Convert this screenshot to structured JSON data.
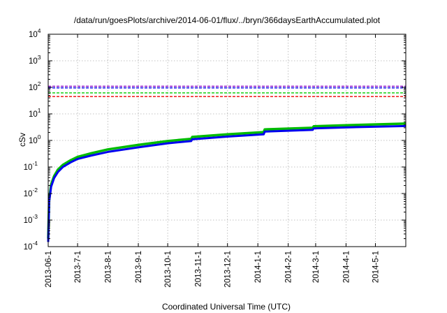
{
  "chart_data": {
    "type": "line",
    "title": "/data/run/goesPlots/archive/2014-06-01/flux/../bryn/366daysEarthAccumulated.plot",
    "xlabel": "Coordinated Universal Time (UTC)",
    "ylabel": "cSv",
    "yscale": "log",
    "ylim": [
      0.0001,
      10000
    ],
    "y_ticks": [
      {
        "base": "10",
        "exp": "-4",
        "value": 0.0001
      },
      {
        "base": "10",
        "exp": "-3",
        "value": 0.001
      },
      {
        "base": "10",
        "exp": "-2",
        "value": 0.01
      },
      {
        "base": "10",
        "exp": "-1",
        "value": 0.1
      },
      {
        "base": "10",
        "exp": "0",
        "value": 1
      },
      {
        "base": "10",
        "exp": "1",
        "value": 10
      },
      {
        "base": "10",
        "exp": "2",
        "value": 100
      },
      {
        "base": "10",
        "exp": "3",
        "value": 1000
      },
      {
        "base": "10",
        "exp": "4",
        "value": 10000
      }
    ],
    "xlim": [
      "2013-06-01",
      "2014-06-01"
    ],
    "x_ticks": [
      {
        "label": "2013-06-1",
        "value": "2013-06-01"
      },
      {
        "label": "2013-7-1",
        "value": "2013-07-01"
      },
      {
        "label": "2013-8-1",
        "value": "2013-08-01"
      },
      {
        "label": "2013-9-1",
        "value": "2013-09-01"
      },
      {
        "label": "2013-10-1",
        "value": "2013-10-01"
      },
      {
        "label": "2013-11-1",
        "value": "2013-11-01"
      },
      {
        "label": "2013-12-1",
        "value": "2013-12-01"
      },
      {
        "label": "2014-1-1",
        "value": "2014-01-01"
      },
      {
        "label": "2014-2-1",
        "value": "2014-02-01"
      },
      {
        "label": "2014-3-1",
        "value": "2014-03-01"
      },
      {
        "label": "2014-4-1",
        "value": "2014-04-01"
      },
      {
        "label": "2014-5-1",
        "value": "2014-05-01"
      }
    ],
    "grid": true,
    "reference_lines": [
      {
        "y": 110,
        "color": "#8800cc"
      },
      {
        "y": 95,
        "color": "#0000ee"
      },
      {
        "y": 62,
        "color": "#00cc00"
      },
      {
        "y": 45,
        "color": "#ee0000"
      }
    ],
    "series": [
      {
        "color": "#00bb00",
        "points": [
          [
            "2013-06-01",
            0.0002
          ],
          [
            "2013-06-02",
            0.006
          ],
          [
            "2013-06-04",
            0.022
          ],
          [
            "2013-06-07",
            0.045
          ],
          [
            "2013-06-11",
            0.08
          ],
          [
            "2013-06-16",
            0.12
          ],
          [
            "2013-06-24",
            0.18
          ],
          [
            "2013-07-01",
            0.24
          ],
          [
            "2013-07-15",
            0.33
          ],
          [
            "2013-08-01",
            0.46
          ],
          [
            "2013-09-01",
            0.68
          ],
          [
            "2013-10-01",
            0.95
          ],
          [
            "2013-10-25",
            1.15
          ],
          [
            "2013-10-26",
            1.35
          ],
          [
            "2013-12-01",
            1.7
          ],
          [
            "2014-01-07",
            2.05
          ],
          [
            "2014-01-08",
            2.6
          ],
          [
            "2014-02-26",
            3.0
          ],
          [
            "2014-02-27",
            3.4
          ],
          [
            "2014-04-01",
            3.75
          ],
          [
            "2014-06-01",
            4.3
          ]
        ]
      },
      {
        "color": "#0000ee",
        "points": [
          [
            "2013-06-01",
            0.00015
          ],
          [
            "2013-06-02",
            0.005
          ],
          [
            "2013-06-04",
            0.018
          ],
          [
            "2013-06-07",
            0.038
          ],
          [
            "2013-06-11",
            0.065
          ],
          [
            "2013-06-16",
            0.1
          ],
          [
            "2013-06-24",
            0.15
          ],
          [
            "2013-07-01",
            0.2
          ],
          [
            "2013-07-15",
            0.27
          ],
          [
            "2013-08-01",
            0.37
          ],
          [
            "2013-09-01",
            0.55
          ],
          [
            "2013-10-01",
            0.78
          ],
          [
            "2013-10-25",
            0.95
          ],
          [
            "2013-10-26",
            1.1
          ],
          [
            "2013-12-01",
            1.4
          ],
          [
            "2014-01-07",
            1.7
          ],
          [
            "2014-01-08",
            2.15
          ],
          [
            "2014-02-26",
            2.5
          ],
          [
            "2014-02-27",
            2.85
          ],
          [
            "2014-04-01",
            3.1
          ],
          [
            "2014-06-01",
            3.5
          ]
        ]
      }
    ]
  }
}
